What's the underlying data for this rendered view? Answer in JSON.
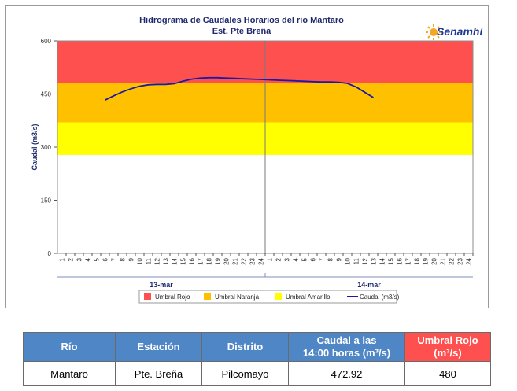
{
  "chart_data": {
    "type": "line",
    "title": "Hidrograma de Caudales Horarios del río Mantaro",
    "subtitle": "Est. Pte Breña",
    "ylabel": "Caudal  (m3/s)",
    "ylim": [
      0,
      600
    ],
    "yticks": [
      "0",
      "150",
      "300",
      "450",
      "600"
    ],
    "hour_ticks": [
      "1",
      "2",
      "3",
      "4",
      "5",
      "6",
      "7",
      "8",
      "9",
      "10",
      "11",
      "12",
      "13",
      "14",
      "15",
      "16",
      "17",
      "18",
      "19",
      "20",
      "21",
      "22",
      "23",
      "24"
    ],
    "days": [
      "13-mar",
      "14-mar"
    ],
    "thresholds": [
      {
        "name": "Umbral Rojo",
        "from": 480,
        "to": 600,
        "color": "#ff5050"
      },
      {
        "name": "Umbral Naranja",
        "from": 370,
        "to": 480,
        "color": "#ffc000"
      },
      {
        "name": "Umbral Amarillo",
        "from": 278,
        "to": 370,
        "color": "#ffff00"
      }
    ],
    "series": [
      {
        "name": "Caudal (m3/s)",
        "color": "#1a1aa6",
        "points": [
          {
            "x": 6,
            "y": 433
          },
          {
            "x": 7,
            "y": 445
          },
          {
            "x": 8,
            "y": 456
          },
          {
            "x": 9,
            "y": 465
          },
          {
            "x": 10,
            "y": 472
          },
          {
            "x": 11,
            "y": 476
          },
          {
            "x": 12,
            "y": 477
          },
          {
            "x": 13,
            "y": 477
          },
          {
            "x": 14,
            "y": 479
          },
          {
            "x": 15,
            "y": 486
          },
          {
            "x": 16,
            "y": 492
          },
          {
            "x": 17,
            "y": 495
          },
          {
            "x": 18,
            "y": 496
          },
          {
            "x": 19,
            "y": 496
          },
          {
            "x": 20,
            "y": 495
          },
          {
            "x": 21,
            "y": 494
          },
          {
            "x": 22,
            "y": 493
          },
          {
            "x": 23,
            "y": 492
          },
          {
            "x": 24,
            "y": 491
          },
          {
            "x": 25,
            "y": 490
          },
          {
            "x": 26,
            "y": 489
          },
          {
            "x": 27,
            "y": 488
          },
          {
            "x": 28,
            "y": 487
          },
          {
            "x": 29,
            "y": 486
          },
          {
            "x": 30,
            "y": 485
          },
          {
            "x": 31,
            "y": 484
          },
          {
            "x": 32,
            "y": 484
          },
          {
            "x": 33,
            "y": 483
          },
          {
            "x": 34,
            "y": 480
          },
          {
            "x": 35,
            "y": 470
          },
          {
            "x": 36,
            "y": 455
          },
          {
            "x": 37,
            "y": 440
          }
        ]
      }
    ]
  },
  "logo": {
    "text": "Senamhi",
    "color": "#1f3a93",
    "sun_color": "#f5a623"
  },
  "table": {
    "headers": [
      "Río",
      "Estación",
      "Distrito",
      "Caudal a las 14:00 horas (m³/s)",
      "Umbral Rojo (m³/s)"
    ],
    "header_lines": [
      [
        "Río"
      ],
      [
        "Estación"
      ],
      [
        "Distrito"
      ],
      [
        "Caudal a las",
        "14:00 horas (m³/s)"
      ],
      [
        "Umbral Rojo",
        "(m³/s)"
      ]
    ],
    "row": [
      "Mantaro",
      "Pte. Breña",
      "Pilcomayo",
      "472.92",
      "480"
    ]
  }
}
